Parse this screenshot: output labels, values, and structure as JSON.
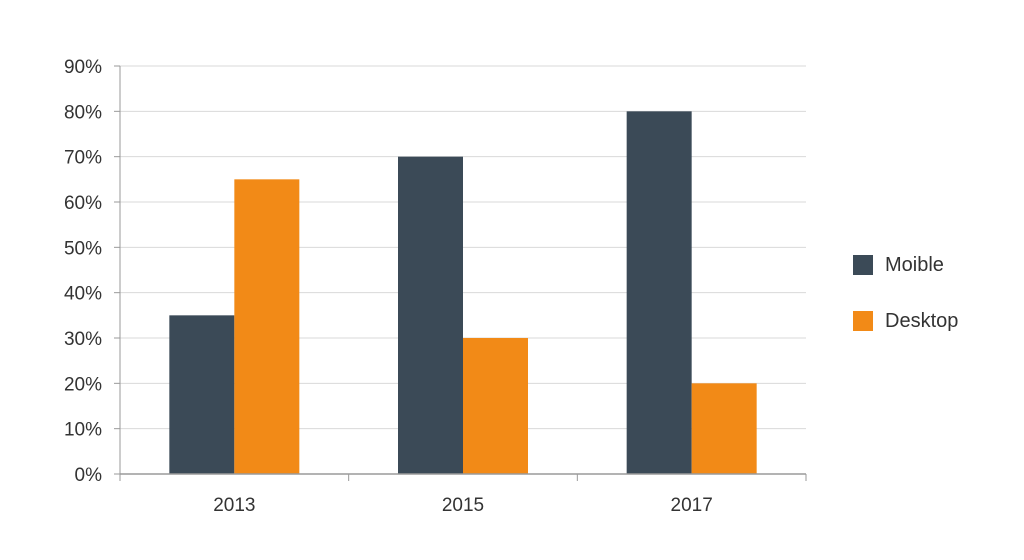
{
  "chart_data": {
    "type": "bar",
    "categories": [
      "2013",
      "2015",
      "2017"
    ],
    "series": [
      {
        "name": "Moible",
        "values": [
          35,
          70,
          80
        ],
        "color": "#3b4a57"
      },
      {
        "name": "Desktop",
        "values": [
          65,
          30,
          20
        ],
        "color": "#f28a17"
      }
    ],
    "ylim": [
      0,
      90
    ],
    "y_ticks": [
      0,
      10,
      20,
      30,
      40,
      50,
      60,
      70,
      80,
      90
    ],
    "y_tick_format": "percent",
    "grid": true,
    "grid_color": "#d9d9d9",
    "axis_color": "#9a9a9a",
    "legend_position": "right"
  }
}
